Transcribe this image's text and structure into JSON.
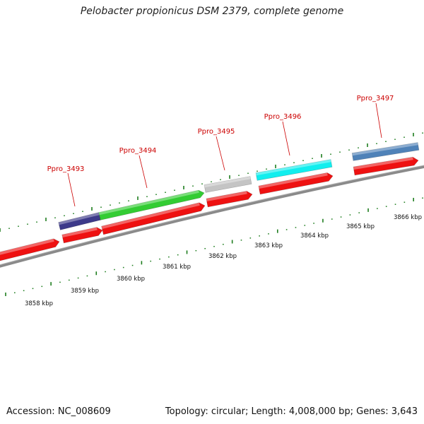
{
  "header": {
    "title": "Pelobacter propionicus DSM 2379, complete genome"
  },
  "footer": {
    "accession": "Accession: NC_008609",
    "summary": "Topology: circular; Length: 4,008,000 bp; Genes: 3,643"
  },
  "genes": [
    {
      "label": "",
      "color": "#ee1111",
      "type": "CDS"
    },
    {
      "label": "Ppro_3493",
      "color": "#3d3a8a",
      "type": "gene"
    },
    {
      "label": "Ppro_3494",
      "color": "#33cc33",
      "type": "gene"
    },
    {
      "label": "Ppro_3495",
      "color": "#c4c4c4",
      "type": "gene"
    },
    {
      "label": "Ppro_3496",
      "color": "#11eeee",
      "type": "gene"
    },
    {
      "label": "Ppro_3497",
      "color": "#4f82b8",
      "type": "gene"
    }
  ],
  "scale": {
    "ticks": [
      "3858 kbp",
      "3859 kbp",
      "3860 kbp",
      "3861 kbp",
      "3862 kbp",
      "3863 kbp",
      "3864 kbp",
      "3865 kbp",
      "3866 kbp"
    ]
  },
  "colors": {
    "cds": "#ee1111",
    "backbone": "#8a8a8a",
    "tick": "#1e7d1e",
    "label": "#cc0000"
  }
}
